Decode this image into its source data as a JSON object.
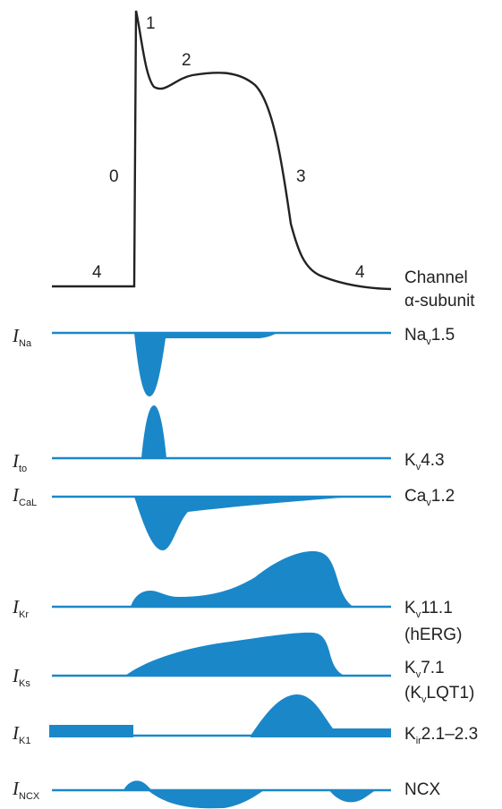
{
  "header": {
    "line1": "Channel",
    "line2": "α-subunit"
  },
  "phases": [
    "0",
    "1",
    "2",
    "3",
    "4",
    "4"
  ],
  "currents": [
    {
      "main": "I",
      "sub": "Na",
      "channel": [
        {
          "t": "Na"
        },
        {
          "t": "v",
          "s": 1
        },
        {
          "t": "1.5"
        }
      ]
    },
    {
      "main": "I",
      "sub": "to",
      "channel": [
        {
          "t": "K"
        },
        {
          "t": "v",
          "s": 1
        },
        {
          "t": "4.3"
        }
      ]
    },
    {
      "main": "I",
      "sub": "CaL",
      "channel": [
        {
          "t": "Ca"
        },
        {
          "t": "v",
          "s": 1
        },
        {
          "t": "1.2"
        }
      ]
    },
    {
      "main": "I",
      "sub": "Kr",
      "channel": [
        {
          "t": "K"
        },
        {
          "t": "v",
          "s": 1
        },
        {
          "t": "11.1"
        }
      ],
      "channel2": "(hERG)"
    },
    {
      "main": "I",
      "sub": "Ks",
      "channel": [
        {
          "t": "K"
        },
        {
          "t": "v",
          "s": 1
        },
        {
          "t": "7.1"
        }
      ],
      "channel2": [
        {
          "t": "(K"
        },
        {
          "t": "v",
          "s": 1
        },
        {
          "t": "LQT1)"
        }
      ]
    },
    {
      "main": "I",
      "sub": "K1",
      "channel": [
        {
          "t": "K"
        },
        {
          "t": "ir",
          "s": 1
        },
        {
          "t": "2.1–2.3"
        }
      ]
    },
    {
      "main": "I",
      "sub": "NCX",
      "channel": [
        {
          "t": "NCX"
        }
      ]
    }
  ],
  "colors": {
    "current": "#1a87c9",
    "trace": "#222222"
  }
}
